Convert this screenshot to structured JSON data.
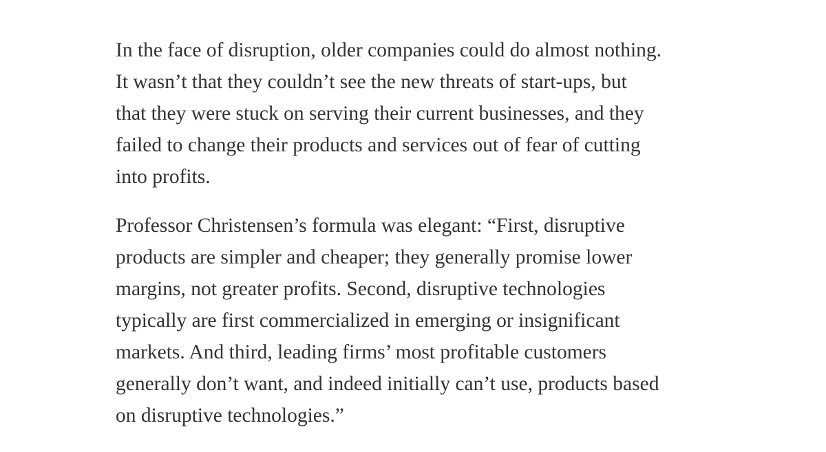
{
  "paragraphs": [
    [
      "In the face of disruption, older companies could do almost nothing.",
      "It wasn’t that they couldn’t see the new threats of start-ups, but",
      "that they were stuck on serving their current businesses, and they",
      "failed to change their products and services out of fear of cutting",
      "into profits."
    ],
    [
      "Professor Christensen’s formula was elegant: “First, disruptive",
      "products are simpler and cheaper; they generally promise lower",
      "margins, not greater profits. Second, disruptive technologies",
      "typically are first commercialized in emerging or insignificant",
      "markets. And third, leading firms’ most profitable customers",
      "generally don’t want, and indeed initially can’t use, products based",
      "on disruptive technologies.”"
    ]
  ]
}
